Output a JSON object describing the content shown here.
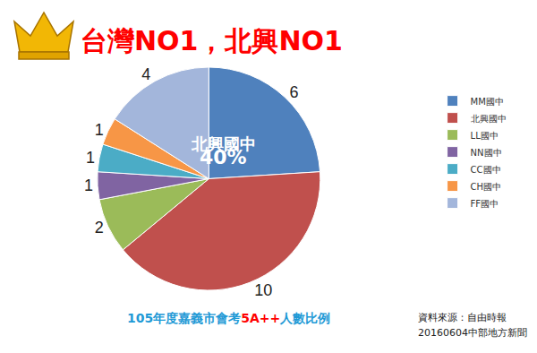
{
  "chart_data": {
    "type": "pie",
    "title": "台灣NO1，北興NO1",
    "categories": [
      "MM國中",
      "北興國中",
      "LL國中",
      "NN國中",
      "CC國中",
      "CH國中",
      "FF國中"
    ],
    "values": [
      6,
      10,
      2,
      1,
      1,
      1,
      4
    ],
    "colors": [
      "#4f81bd",
      "#c0504d",
      "#9bbb59",
      "#8064a2",
      "#4bacc6",
      "#f79646",
      "#a3b6db"
    ],
    "data_labels": true,
    "legend": "right",
    "annotations": [
      {
        "text": "北興國中"
      },
      {
        "value": 40,
        "label": "40%"
      }
    ],
    "caption": [
      "105年度嘉義市會考",
      "5A++",
      "人數比例"
    ],
    "source": [
      "資料來源：自由時報",
      "20160604中部地方新聞"
    ]
  }
}
